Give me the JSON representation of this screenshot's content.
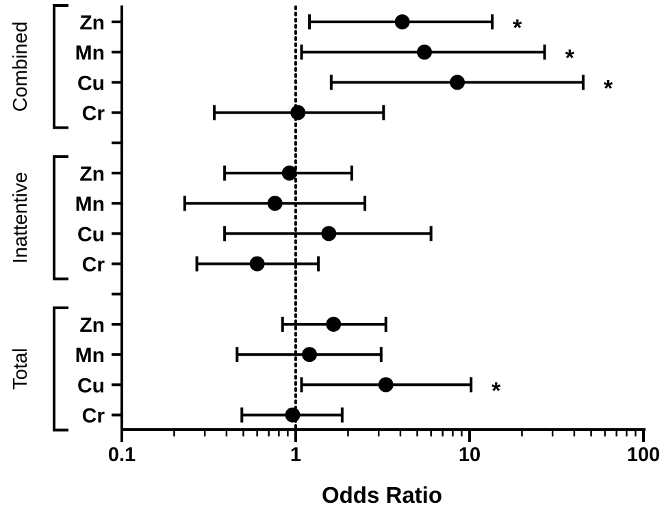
{
  "chart_data": {
    "type": "forest",
    "title": "",
    "xlabel": "Odds Ratio",
    "x_scale": "log",
    "xlim": [
      0.1,
      100
    ],
    "x_ticks": [
      "0.1",
      "1",
      "10",
      "100"
    ],
    "reference_line": 1,
    "groups": [
      {
        "name": "Combined",
        "rows": [
          {
            "label": "Zn",
            "or": 4.1,
            "lo": 1.2,
            "hi": 13.5,
            "sig": "*"
          },
          {
            "label": "Mn",
            "or": 5.5,
            "lo": 1.08,
            "hi": 27,
            "sig": "*"
          },
          {
            "label": "Cu",
            "or": 8.5,
            "lo": 1.6,
            "hi": 45,
            "sig": "*"
          },
          {
            "label": "Cr",
            "or": 1.03,
            "lo": 0.34,
            "hi": 3.2,
            "sig": ""
          }
        ]
      },
      {
        "name": "Inattentive",
        "rows": [
          {
            "label": "Zn",
            "or": 0.92,
            "lo": 0.39,
            "hi": 2.1,
            "sig": ""
          },
          {
            "label": "Mn",
            "or": 0.76,
            "lo": 0.23,
            "hi": 2.5,
            "sig": ""
          },
          {
            "label": "Cu",
            "or": 1.55,
            "lo": 0.39,
            "hi": 6.0,
            "sig": ""
          },
          {
            "label": "Cr",
            "or": 0.6,
            "lo": 0.27,
            "hi": 1.35,
            "sig": ""
          }
        ]
      },
      {
        "name": "Total",
        "rows": [
          {
            "label": "Zn",
            "or": 1.65,
            "lo": 0.84,
            "hi": 3.3,
            "sig": ""
          },
          {
            "label": "Mn",
            "or": 1.2,
            "lo": 0.46,
            "hi": 3.1,
            "sig": ""
          },
          {
            "label": "Cu",
            "or": 3.3,
            "lo": 1.08,
            "hi": 10.2,
            "sig": "*"
          },
          {
            "label": "Cr",
            "or": 0.96,
            "lo": 0.49,
            "hi": 1.85,
            "sig": ""
          }
        ]
      }
    ]
  }
}
